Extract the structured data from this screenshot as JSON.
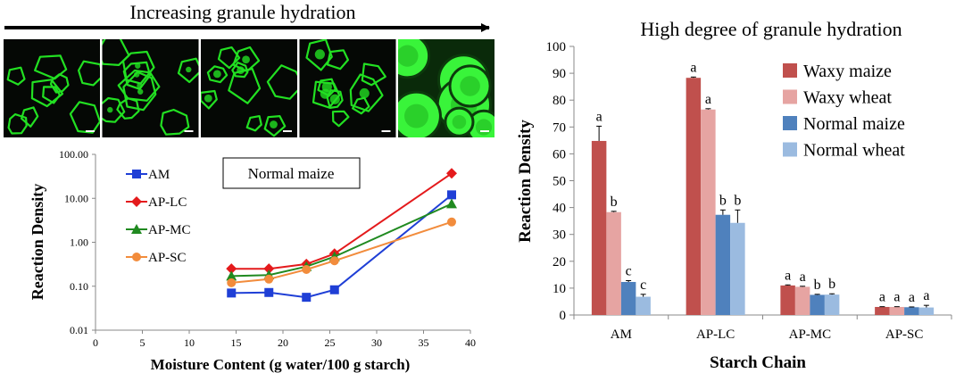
{
  "figure": {
    "arrow_label": "Increasing granule hydration",
    "micrograph_count": 5,
    "micrograph_colors": {
      "background": "#050805",
      "stain": "#22e022",
      "bright": "#39f43a"
    }
  },
  "chart_data": [
    {
      "type": "line",
      "yscale": "log",
      "title": "",
      "inset_label": "Normal maize",
      "xlabel": "Moisture Content (g water/100 g starch)",
      "ylabel": "Reaction Density",
      "xlim": [
        0,
        40
      ],
      "ylim": [
        0.01,
        100
      ],
      "x_ticks": [
        "0",
        "5",
        "10",
        "15",
        "20",
        "25",
        "30",
        "35",
        "40"
      ],
      "y_ticks": [
        "0.01",
        "0.10",
        "1.00",
        "10.00",
        "100.00"
      ],
      "legend_position": "left",
      "x": [
        14.5,
        18.5,
        22.5,
        25.5,
        38
      ],
      "series": [
        {
          "name": "AM",
          "values": [
            0.07,
            0.072,
            0.056,
            0.083,
            12
          ],
          "color": "#1f3fd6",
          "marker": "square"
        },
        {
          "name": "AP-LC",
          "values": [
            0.25,
            0.25,
            0.32,
            0.55,
            37
          ],
          "color": "#e41a1c",
          "marker": "diamond"
        },
        {
          "name": "AP-MC",
          "values": [
            0.17,
            0.18,
            0.28,
            0.47,
            7.5
          ],
          "color": "#208a20",
          "marker": "triangle"
        },
        {
          "name": "AP-SC",
          "values": [
            0.12,
            0.145,
            0.24,
            0.38,
            2.9
          ],
          "color": "#f28c3c",
          "marker": "circle"
        }
      ]
    },
    {
      "type": "bar",
      "title": "High degree of granule hydration",
      "xlabel": "Starch Chain",
      "ylabel": "Reaction Density",
      "ylim": [
        0,
        100
      ],
      "y_ticks": [
        "0",
        "10",
        "20",
        "30",
        "40",
        "50",
        "60",
        "70",
        "80",
        "90",
        "100"
      ],
      "legend_position": "top-right",
      "categories": [
        "AM",
        "AP-LC",
        "AP-MC",
        "AP-SC"
      ],
      "series": [
        {
          "name": "Waxy maize",
          "color": "#c0504d",
          "values": [
            64.8,
            88.3,
            11.0,
            3.0
          ],
          "errors": [
            5.5,
            0.3,
            0.2,
            0.1
          ],
          "letters": [
            "a",
            "a",
            "a",
            "a"
          ]
        },
        {
          "name": "Waxy wheat",
          "color": "#e6a4a2",
          "values": [
            38.3,
            76.5,
            10.5,
            3.0
          ],
          "errors": [
            0.3,
            0.3,
            0.2,
            0.1
          ],
          "letters": [
            "b",
            "a",
            "a",
            "a"
          ]
        },
        {
          "name": "Normal maize",
          "color": "#4f81bd",
          "values": [
            12.3,
            37.3,
            7.5,
            2.9
          ],
          "errors": [
            0.5,
            1.8,
            0.2,
            0.1
          ],
          "letters": [
            "c",
            "b",
            "b",
            "a"
          ]
        },
        {
          "name": "Normal wheat",
          "color": "#9bbbe0",
          "values": [
            6.8,
            34.3,
            7.6,
            2.8
          ],
          "errors": [
            0.9,
            4.8,
            0.3,
            0.8
          ],
          "letters": [
            "c",
            "b",
            "b",
            "a"
          ]
        }
      ]
    }
  ]
}
